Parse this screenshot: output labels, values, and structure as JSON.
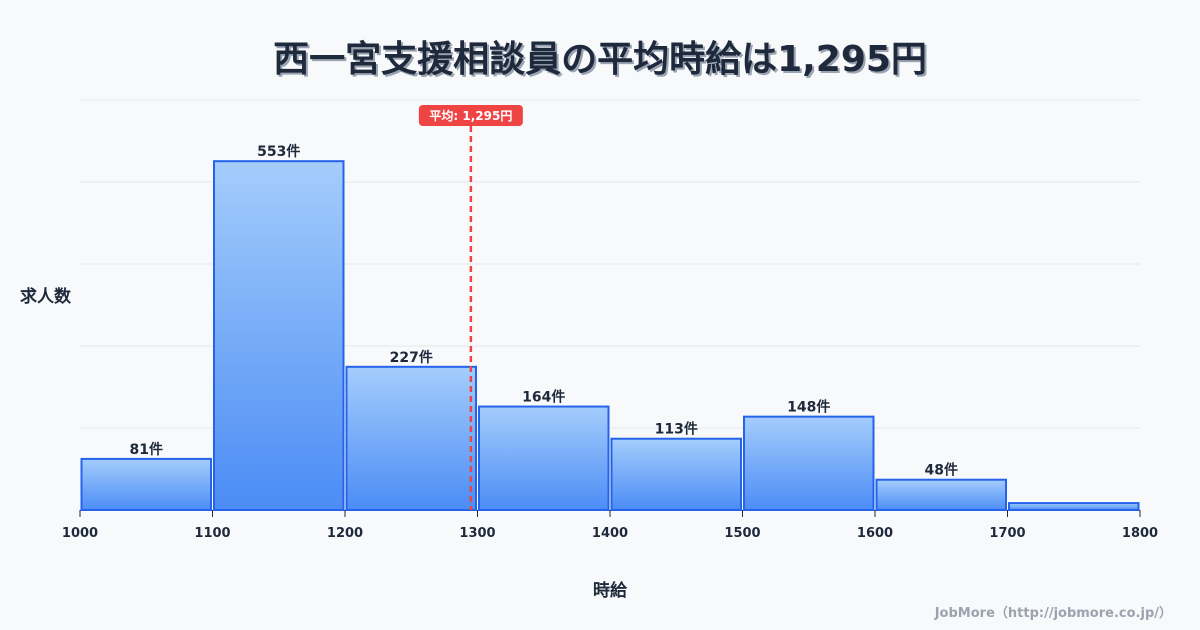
{
  "title": "西一宮支援相談員の平均時給は1,295円",
  "footer": "JobMore（http://jobmore.co.jp/）",
  "chart_data": {
    "type": "bar",
    "title": "西一宮支援相談員の平均時給は1,295円",
    "xlabel": "時給",
    "ylabel": "求人数",
    "bins": [
      [
        1000,
        1100
      ],
      [
        1100,
        1200
      ],
      [
        1200,
        1300
      ],
      [
        1300,
        1400
      ],
      [
        1400,
        1500
      ],
      [
        1500,
        1600
      ],
      [
        1600,
        1700
      ],
      [
        1700,
        1800
      ]
    ],
    "categories": [
      "1000-1100",
      "1100-1200",
      "1200-1300",
      "1300-1400",
      "1400-1500",
      "1500-1600",
      "1600-1700",
      "1700-1800"
    ],
    "values": [
      81,
      553,
      227,
      164,
      113,
      148,
      48,
      11
    ],
    "labels": [
      "81件",
      "553件",
      "227件",
      "164件",
      "113件",
      "148件",
      "48件",
      ""
    ],
    "x_ticks": [
      "1000",
      "1100",
      "1200",
      "1300",
      "1400",
      "1500",
      "1600",
      "1700",
      "1800"
    ],
    "xlim": [
      1000,
      1800
    ],
    "ylim": [
      0,
      650
    ],
    "grid": true,
    "mean": {
      "value": 1295,
      "label": "平均: 1,295円",
      "color": "#ef4444"
    },
    "colors": {
      "bar_top": "#a5cdfc",
      "bar_bottom": "#4b8cf5",
      "bar_border": "#2563eb",
      "grid": "#e5e7eb"
    }
  }
}
